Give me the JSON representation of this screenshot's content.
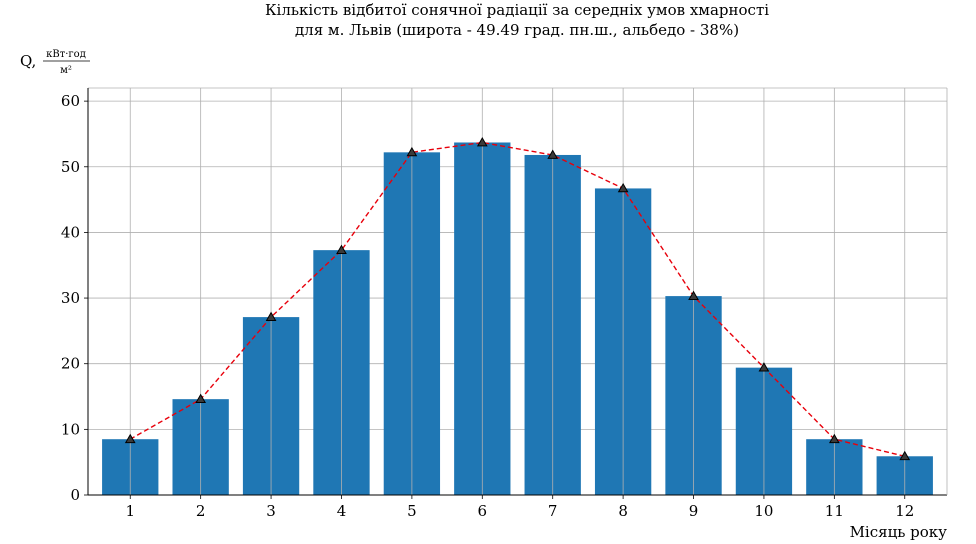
{
  "chart_data": {
    "type": "bar",
    "title_line1": "Кількість відбитої сонячної радіації за середніх умов хмарності",
    "title_line2": "для м. Львів (широта - 49.49 град. пн.ш., альбедо - 38%)",
    "ylabel_prefix": "Q,",
    "ylabel_unit_numerator": "кВт·год",
    "ylabel_unit_denominator": "м²",
    "xlabel": "Місяць року",
    "categories": [
      "1",
      "2",
      "3",
      "4",
      "5",
      "6",
      "7",
      "8",
      "9",
      "10",
      "11",
      "12"
    ],
    "values": [
      8.5,
      14.6,
      27.1,
      37.3,
      52.2,
      53.7,
      51.8,
      46.7,
      30.3,
      19.4,
      8.5,
      5.9
    ],
    "ylim": [
      0,
      62
    ],
    "yticks": [
      0,
      10,
      20,
      30,
      40,
      50,
      60
    ],
    "grid": true,
    "bar_color": "#1f77b4",
    "line_color": "#e8000b",
    "line_style": "dashed",
    "marker": "triangle",
    "marker_color": "#000000"
  }
}
